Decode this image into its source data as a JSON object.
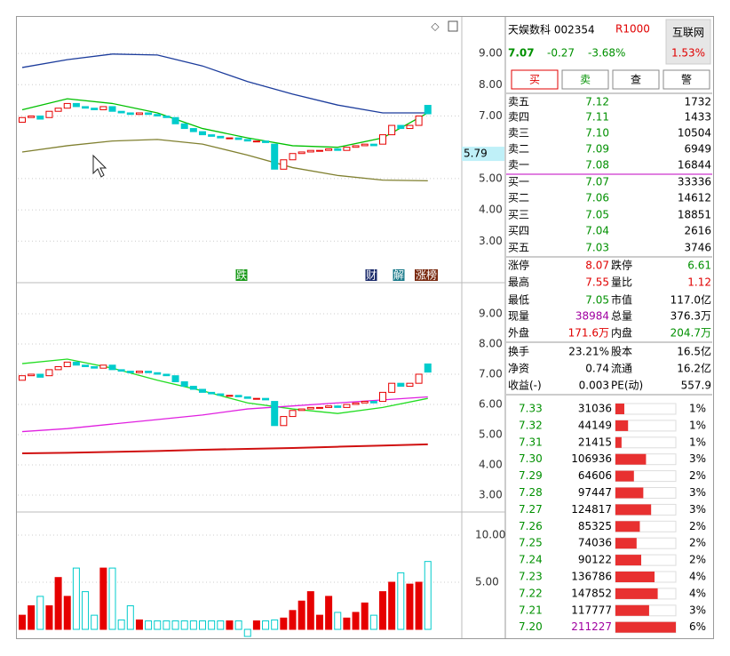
{
  "kline": {
    "open": [
      6.8,
      6.95,
      7.0,
      6.95,
      7.15,
      7.25,
      7.4,
      7.3,
      7.25,
      7.2,
      7.3,
      7.15,
      7.1,
      7.05,
      7.1,
      7.05,
      7.0,
      6.95,
      6.75,
      6.6,
      6.5,
      6.4,
      6.35,
      6.3,
      6.3,
      6.25,
      6.2,
      6.2,
      6.1,
      5.3,
      5.6,
      5.8,
      5.85,
      5.9,
      5.9,
      5.95,
      5.9,
      6.0,
      6.05,
      6.1,
      6.1,
      6.4,
      6.7,
      6.6,
      6.7,
      7.34
    ],
    "close": [
      6.95,
      7.0,
      6.9,
      7.15,
      7.25,
      7.4,
      7.3,
      7.25,
      7.2,
      7.3,
      7.15,
      7.1,
      7.05,
      7.1,
      7.05,
      7.0,
      6.95,
      6.75,
      6.6,
      6.5,
      6.4,
      6.35,
      6.3,
      6.3,
      6.25,
      6.2,
      6.2,
      6.15,
      5.3,
      5.6,
      5.8,
      5.85,
      5.9,
      5.9,
      5.95,
      5.9,
      6.0,
      6.05,
      6.1,
      6.05,
      6.4,
      6.7,
      6.6,
      6.7,
      7.0,
      7.07
    ],
    "volume": [
      1.5,
      2.5,
      3.5,
      2.5,
      5.5,
      3.5,
      6.5,
      4.0,
      1.5,
      6.5,
      6.5,
      1.0,
      2.5,
      1.0,
      0.9,
      0.9,
      0.9,
      0.9,
      0.9,
      0.9,
      0.9,
      0.9,
      0.9,
      0.9,
      0.9,
      -0.75,
      0.9,
      0.9,
      1.0,
      1.2,
      2.0,
      3.0,
      4.0,
      1.5,
      3.5,
      1.8,
      1.2,
      1.8,
      2.8,
      1.5,
      4.0,
      5.0,
      6.0,
      4.8,
      5.0,
      7.2
    ],
    "up_color": "#e60000",
    "down_color": "#00cccc"
  },
  "price_panel": {
    "ylim": [
      1.7,
      10.14
    ],
    "yticks": [
      {
        "value": 9,
        "label": "9.00"
      },
      {
        "value": 8,
        "label": "8.00"
      },
      {
        "value": 7,
        "label": "7.00"
      },
      {
        "value": 5,
        "label": "5.00"
      },
      {
        "value": 4,
        "label": "4.00"
      },
      {
        "value": 3,
        "label": "3.00"
      }
    ],
    "cursor_price": {
      "value": 5.79,
      "label": "5.79"
    },
    "series": [
      {
        "color": "#1c3c9c",
        "x": [
          0,
          5,
          10,
          15,
          20,
          25,
          30,
          35,
          40,
          45
        ],
        "values": [
          8.55,
          8.8,
          8.98,
          8.95,
          8.6,
          8.1,
          7.7,
          7.35,
          7.1,
          7.1
        ]
      },
      {
        "color": "#808030",
        "x": [
          0,
          5,
          10,
          15,
          20,
          25,
          30,
          35,
          40,
          45
        ],
        "values": [
          5.85,
          6.05,
          6.2,
          6.25,
          6.1,
          5.75,
          5.35,
          5.1,
          4.95,
          4.93
        ]
      },
      {
        "color": "#00c000",
        "x": [
          0,
          5,
          10,
          15,
          20,
          25,
          30,
          35,
          40,
          45
        ],
        "values": [
          7.2,
          7.55,
          7.4,
          7.1,
          6.6,
          6.3,
          6.05,
          6.0,
          6.3,
          7.1
        ]
      }
    ],
    "markers": [
      "跌",
      "财",
      "解",
      "涨榜"
    ]
  },
  "trend_panel": {
    "ylim": [
      2.47,
      9.97
    ],
    "yticks": [
      {
        "value": 9,
        "label": "9.00"
      },
      {
        "value": 8,
        "label": "8.00"
      },
      {
        "value": 7,
        "label": "7.00"
      },
      {
        "value": 6,
        "label": "6.00"
      },
      {
        "value": 5,
        "label": "5.00"
      },
      {
        "value": 4,
        "label": "4.00"
      },
      {
        "value": 3,
        "label": "3.00"
      }
    ],
    "series": [
      {
        "color": "#22dd22",
        "x": [
          0,
          5,
          10,
          15,
          20,
          25,
          30,
          35,
          40,
          45
        ],
        "values": [
          7.35,
          7.5,
          7.2,
          6.8,
          6.45,
          6.05,
          5.85,
          5.7,
          5.9,
          6.2
        ]
      },
      {
        "color": "#e020e0",
        "x": [
          0,
          5,
          10,
          15,
          20,
          25,
          30,
          35,
          40,
          45
        ],
        "values": [
          5.1,
          5.2,
          5.35,
          5.5,
          5.65,
          5.85,
          5.95,
          6.05,
          6.15,
          6.25
        ]
      },
      {
        "color": "#d01010",
        "x": [
          0,
          5,
          10,
          15,
          20,
          25,
          30,
          35,
          40,
          45
        ],
        "values": [
          4.38,
          4.4,
          4.43,
          4.46,
          4.5,
          4.53,
          4.56,
          4.6,
          4.64,
          4.68
        ]
      }
    ]
  },
  "volume_panel": {
    "ylim": [
      -0.94,
      12.26
    ],
    "yticks": [
      {
        "value": 10,
        "label": "10.00"
      },
      {
        "value": 5,
        "label": "5.00"
      }
    ]
  },
  "header": {
    "name": "天娱数科 002354",
    "badge": "R1000",
    "price": "7.07",
    "change": "-0.27",
    "change_pct": "-3.68%",
    "sector": "互联网",
    "sector_pct": "1.53%"
  },
  "buttons": [
    "买",
    "卖",
    "查",
    "警"
  ],
  "order_book": [
    [
      "卖五",
      "7.12",
      "1732"
    ],
    [
      "卖四",
      "7.11",
      "1433"
    ],
    [
      "卖三",
      "7.10",
      "10504"
    ],
    [
      "卖二",
      "7.09",
      "6949"
    ],
    [
      "卖一",
      "7.08",
      "16844"
    ],
    [
      "买一",
      "7.07",
      "33336"
    ],
    [
      "买二",
      "7.06",
      "14612"
    ],
    [
      "买三",
      "7.05",
      "18851"
    ],
    [
      "买四",
      "7.04",
      "2616"
    ],
    [
      "买五",
      "7.03",
      "3746"
    ]
  ],
  "stats": [
    [
      {
        "label": "涨停",
        "value": "8.07",
        "color": "#e00000"
      },
      {
        "label": "跌停",
        "value": "6.61",
        "color": "#009000"
      }
    ],
    [
      {
        "label": "最高",
        "value": "7.55",
        "color": "#e00000"
      },
      {
        "label": "量比",
        "value": "1.12",
        "color": "#e00000"
      }
    ],
    [
      {
        "label": "最低",
        "value": "7.05",
        "color": "#009000"
      },
      {
        "label": "市值",
        "value": "117.0亿",
        "color": "#000000"
      }
    ],
    [
      {
        "label": "现量",
        "value": "38984",
        "color": "#a000a0"
      },
      {
        "label": "总量",
        "value": "376.3万",
        "color": "#000000"
      }
    ],
    [
      {
        "label": "外盘",
        "value": "171.6万",
        "color": "#e00000"
      },
      {
        "label": "内盘",
        "value": "204.7万",
        "color": "#009000"
      }
    ],
    [
      {
        "label": "换手",
        "value": "23.21%",
        "color": "#000000"
      },
      {
        "label": "股本",
        "value": "16.5亿",
        "color": "#000000"
      }
    ],
    [
      {
        "label": "净资",
        "value": "0.74",
        "color": "#000000"
      },
      {
        "label": "流通",
        "value": "16.2亿",
        "color": "#000000"
      }
    ],
    [
      {
        "label": "收益(-)",
        "value": "0.003",
        "color": "#000000"
      },
      {
        "label": "PE(动)",
        "value": "557.9",
        "color": "#000000"
      }
    ]
  ],
  "distribution": {
    "prices": [
      "7.33",
      "7.32",
      "7.31",
      "7.30",
      "7.29",
      "7.28",
      "7.27",
      "7.26",
      "7.25",
      "7.24",
      "7.23",
      "7.22",
      "7.21",
      "7.20"
    ],
    "volumes": [
      31036,
      44149,
      21415,
      106936,
      64606,
      97447,
      124817,
      85325,
      74036,
      90122,
      136786,
      147852,
      117777,
      211227
    ],
    "pcts": [
      "1%",
      "1%",
      "1%",
      "3%",
      "2%",
      "3%",
      "3%",
      "2%",
      "2%",
      "2%",
      "4%",
      "4%",
      "3%",
      "6%"
    ]
  }
}
